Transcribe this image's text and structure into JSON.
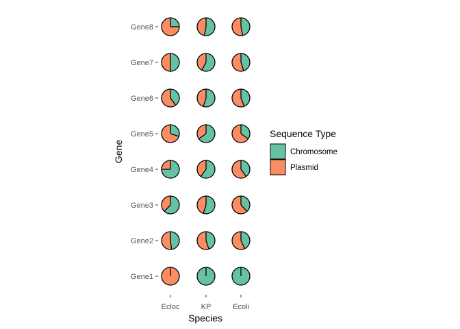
{
  "chart_data": {
    "type": "pie-grid",
    "xlabel": "Species",
    "ylabel": "Gene",
    "x_categories": [
      "Ecloc",
      "KP",
      "Ecoli"
    ],
    "y_categories": [
      "Gene1",
      "Gene2",
      "Gene3",
      "Gene4",
      "Gene5",
      "Gene6",
      "Gene7",
      "Gene8"
    ],
    "legend": {
      "title": "Sequence Type",
      "position": "right",
      "entries": [
        {
          "name": "Chromosome",
          "color": "#66c2a5"
        },
        {
          "name": "Plasmid",
          "color": "#fc8d62"
        }
      ]
    },
    "chromosome_fraction": {
      "Ecloc": {
        "Gene1": 0.0,
        "Gene2": 0.48,
        "Gene3": 0.62,
        "Gene4": 0.75,
        "Gene5": 0.3,
        "Gene6": 0.4,
        "Gene7": 0.5,
        "Gene8": 0.25
      },
      "KP": {
        "Gene1": 1.0,
        "Gene2": 0.45,
        "Gene3": 0.55,
        "Gene4": 0.6,
        "Gene5": 0.65,
        "Gene6": 0.55,
        "Gene7": 0.58,
        "Gene8": 0.53
      },
      "Ecoli": {
        "Gene1": 1.0,
        "Gene2": 0.43,
        "Gene3": 0.38,
        "Gene4": 0.4,
        "Gene5": 0.35,
        "Gene6": 0.44,
        "Gene7": 0.45,
        "Gene8": 0.47
      }
    },
    "grid": false
  }
}
